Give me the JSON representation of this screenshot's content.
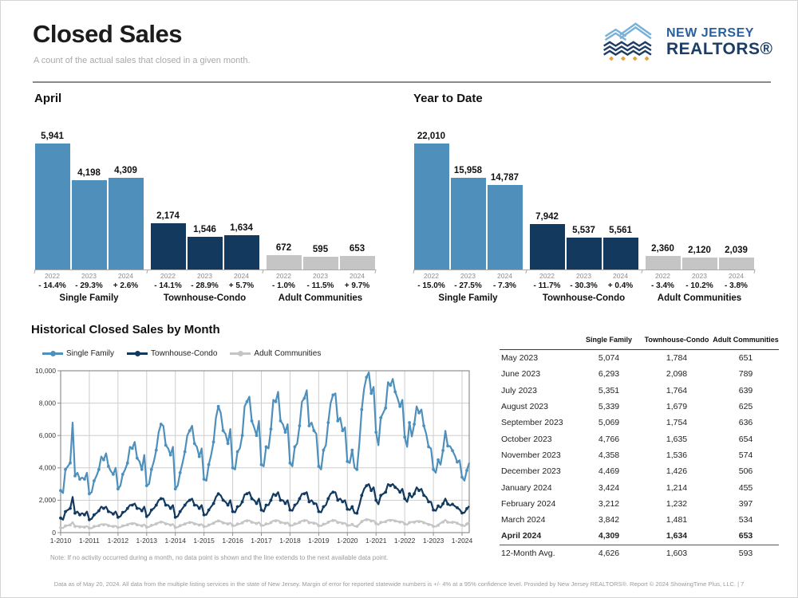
{
  "header": {
    "title": "Closed Sales",
    "subtitle": "A count of the actual sales that closed in a given month.",
    "logo": {
      "line1": "NEW JERSEY",
      "line2": "REALTORS®"
    }
  },
  "colors": {
    "single_family": "#4E90BB",
    "townhouse_condo": "#133A5E",
    "adult_communities": "#C5C5C5",
    "logo_light_blue": "#77B0D8",
    "logo_navy": "#1C3D66",
    "logo_gold": "#E4A23C"
  },
  "chart_data": [
    {
      "type": "bar",
      "name": "april",
      "title": "April",
      "ylim": [
        0,
        5941
      ],
      "groups": [
        {
          "label": "Single Family",
          "color_key": "single_family",
          "bars": [
            {
              "year": "2022",
              "value": 5941,
              "label": "5,941",
              "change": "- 14.4%"
            },
            {
              "year": "2023",
              "value": 4198,
              "label": "4,198",
              "change": "- 29.3%"
            },
            {
              "year": "2024",
              "value": 4309,
              "label": "4,309",
              "change": "+ 2.6%"
            }
          ]
        },
        {
          "label": "Townhouse-Condo",
          "color_key": "townhouse_condo",
          "bars": [
            {
              "year": "2022",
              "value": 2174,
              "label": "2,174",
              "change": "- 14.1%"
            },
            {
              "year": "2023",
              "value": 1546,
              "label": "1,546",
              "change": "- 28.9%"
            },
            {
              "year": "2024",
              "value": 1634,
              "label": "1,634",
              "change": "+ 5.7%"
            }
          ]
        },
        {
          "label": "Adult Communities",
          "color_key": "adult_communities",
          "bars": [
            {
              "year": "2022",
              "value": 672,
              "label": "672",
              "change": "- 1.0%"
            },
            {
              "year": "2023",
              "value": 595,
              "label": "595",
              "change": "- 11.5%"
            },
            {
              "year": "2024",
              "value": 653,
              "label": "653",
              "change": "+ 9.7%"
            }
          ]
        }
      ]
    },
    {
      "type": "bar",
      "name": "year-to-date",
      "title": "Year to Date",
      "ylim": [
        0,
        22010
      ],
      "groups": [
        {
          "label": "Single Family",
          "color_key": "single_family",
          "bars": [
            {
              "year": "2022",
              "value": 22010,
              "label": "22,010",
              "change": "- 15.0%"
            },
            {
              "year": "2023",
              "value": 15958,
              "label": "15,958",
              "change": "- 27.5%"
            },
            {
              "year": "2024",
              "value": 14787,
              "label": "14,787",
              "change": "- 7.3%"
            }
          ]
        },
        {
          "label": "Townhouse-Condo",
          "color_key": "townhouse_condo",
          "bars": [
            {
              "year": "2022",
              "value": 7942,
              "label": "7,942",
              "change": "- 11.7%"
            },
            {
              "year": "2023",
              "value": 5537,
              "label": "5,537",
              "change": "- 30.3%"
            },
            {
              "year": "2024",
              "value": 5561,
              "label": "5,561",
              "change": "+ 0.4%"
            }
          ]
        },
        {
          "label": "Adult Communities",
          "color_key": "adult_communities",
          "bars": [
            {
              "year": "2022",
              "value": 2360,
              "label": "2,360",
              "change": "- 3.4%"
            },
            {
              "year": "2023",
              "value": 2120,
              "label": "2,120",
              "change": "- 10.2%"
            },
            {
              "year": "2024",
              "value": 2039,
              "label": "2,039",
              "change": "- 3.8%"
            }
          ]
        }
      ]
    },
    {
      "type": "line",
      "name": "historical",
      "title": "Historical Closed Sales by Month",
      "note": "Note: If no activity occurred during a month, no data point is shown and the line extends to the next available data point.",
      "ylim": [
        0,
        10000
      ],
      "y_tick_labels": [
        "0",
        "2,000",
        "4,000",
        "6,000",
        "8,000",
        "10,000"
      ],
      "x_start": "2010-01",
      "x_end": "2024-04",
      "x_tick_every": 12,
      "x_tick_labels": [
        "1-2010",
        "1-2011",
        "1-2012",
        "1-2013",
        "1-2014",
        "1-2015",
        "1-2016",
        "1-2017",
        "1-2018",
        "1-2019",
        "1-2020",
        "1-2021",
        "1-2022",
        "1-2023",
        "1-2024"
      ],
      "grid": true,
      "legend_position": "top",
      "series": [
        {
          "name": "Single Family",
          "color_key": "single_family",
          "values": [
            2600,
            2450,
            3900,
            4100,
            4300,
            6800,
            3500,
            3700,
            3300,
            3400,
            3300,
            3700,
            2400,
            2500,
            3200,
            3500,
            3900,
            4700,
            4500,
            4900,
            4100,
            3800,
            3600,
            4000,
            2700,
            2900,
            3600,
            3900,
            4300,
            5300,
            5200,
            5600,
            4600,
            4400,
            3900,
            4800,
            2900,
            3000,
            3900,
            4400,
            5100,
            6200,
            6700,
            6600,
            5400,
            5200,
            4800,
            5300,
            2700,
            2900,
            3700,
            4300,
            5000,
            6000,
            6300,
            6600,
            5500,
            5300,
            4700,
            5200,
            3300,
            3200,
            4200,
            4800,
            5600,
            7100,
            7800,
            7400,
            6300,
            6100,
            5500,
            6400,
            4000,
            3900,
            5000,
            5200,
            6000,
            7800,
            8100,
            8400,
            6900,
            6500,
            6000,
            6900,
            4200,
            4100,
            5300,
            5200,
            6400,
            8200,
            8100,
            8700,
            6900,
            6700,
            6200,
            6700,
            4300,
            4100,
            5300,
            5500,
            6600,
            8100,
            8300,
            8800,
            6600,
            6800,
            6300,
            6100,
            4100,
            3900,
            5100,
            5400,
            6800,
            8000,
            8500,
            8600,
            6900,
            7100,
            6300,
            6500,
            4400,
            4300,
            5100,
            4000,
            3900,
            5500,
            7600,
            8900,
            9600,
            9900,
            8600,
            9000,
            6200,
            5400,
            7100,
            7400,
            7700,
            9300,
            9100,
            9500,
            8700,
            8300,
            7800,
            8200,
            5900,
            5300,
            6800,
            5941,
            6700,
            7800,
            7400,
            7600,
            6600,
            6100,
            5300,
            5200,
            3900,
            3700,
            4500,
            4198,
            5074,
            6293,
            5351,
            5339,
            5069,
            4766,
            4358,
            4469,
            3424,
            3212,
            3842,
            4309
          ]
        },
        {
          "name": "Townhouse-Condo",
          "color_key": "townhouse_condo",
          "values": [
            900,
            800,
            1300,
            1400,
            1500,
            2200,
            1200,
            1300,
            1100,
            1200,
            1100,
            1300,
            800,
            850,
            1100,
            1200,
            1350,
            1600,
            1500,
            1600,
            1300,
            1250,
            1150,
            1300,
            950,
            1000,
            1250,
            1300,
            1500,
            1700,
            1700,
            1800,
            1500,
            1500,
            1350,
            1600,
            1000,
            1100,
            1400,
            1500,
            1700,
            2000,
            2100,
            2100,
            1700,
            1700,
            1500,
            1700,
            950,
            1000,
            1300,
            1500,
            1700,
            1900,
            2000,
            2100,
            1700,
            1700,
            1500,
            1700,
            1100,
            1100,
            1400,
            1600,
            1800,
            2200,
            2400,
            2300,
            2000,
            1900,
            1700,
            2000,
            1300,
            1250,
            1600,
            1650,
            1900,
            2350,
            2400,
            2500,
            2100,
            2000,
            1800,
            2100,
            1400,
            1300,
            1700,
            1700,
            2000,
            2400,
            2300,
            2500,
            2000,
            2000,
            1800,
            2000,
            1400,
            1350,
            1700,
            1800,
            2100,
            2400,
            2400,
            2500,
            1900,
            2000,
            1800,
            1800,
            1300,
            1250,
            1600,
            1700,
            2100,
            2400,
            2500,
            2500,
            2000,
            2100,
            1900,
            2000,
            1450,
            1400,
            1600,
            1200,
            1200,
            1700,
            2300,
            2700,
            2900,
            3000,
            2600,
            2800,
            2000,
            1750,
            2300,
            2400,
            2500,
            3000,
            2900,
            3000,
            2800,
            2700,
            2500,
            2700,
            2100,
            1900,
            2400,
            2174,
            2400,
            2800,
            2600,
            2700,
            2300,
            2200,
            1900,
            1900,
            1400,
            1350,
            1650,
            1546,
            1784,
            2098,
            1764,
            1679,
            1754,
            1635,
            1536,
            1426,
            1214,
            1232,
            1481,
            1634
          ]
        },
        {
          "name": "Adult Communities",
          "color_key": "adult_communities",
          "values": [
            300,
            280,
            420,
            450,
            470,
            650,
            380,
            400,
            350,
            370,
            340,
            400,
            280,
            270,
            380,
            400,
            430,
            520,
            490,
            520,
            430,
            410,
            380,
            420,
            320,
            330,
            420,
            440,
            490,
            560,
            550,
            580,
            480,
            470,
            420,
            500,
            340,
            350,
            450,
            480,
            540,
            620,
            650,
            640,
            540,
            530,
            470,
            530,
            320,
            330,
            430,
            480,
            530,
            600,
            620,
            640,
            540,
            520,
            470,
            520,
            380,
            370,
            470,
            520,
            580,
            680,
            720,
            700,
            600,
            580,
            530,
            600,
            440,
            420,
            530,
            540,
            600,
            720,
            730,
            750,
            640,
            610,
            560,
            640,
            450,
            430,
            540,
            530,
            620,
            740,
            730,
            760,
            630,
            620,
            570,
            620,
            450,
            430,
            540,
            550,
            630,
            730,
            740,
            770,
            610,
            630,
            580,
            570,
            430,
            410,
            520,
            540,
            640,
            720,
            750,
            760,
            620,
            640,
            570,
            590,
            450,
            440,
            510,
            400,
            390,
            520,
            680,
            770,
            800,
            810,
            720,
            750,
            560,
            490,
            630,
            650,
            670,
            780,
            760,
            780,
            720,
            690,
            650,
            680,
            540,
            490,
            620,
            672,
            640,
            720,
            680,
            700,
            610,
            570,
            500,
            490,
            390,
            370,
            460,
            595,
            651,
            789,
            639,
            625,
            636,
            654,
            574,
            506,
            455,
            397,
            534,
            653
          ]
        }
      ]
    }
  ],
  "table": {
    "headers": [
      "Single Family",
      "Townhouse-Condo",
      "Adult Communities"
    ],
    "rows": [
      {
        "label": "May 2023",
        "values": [
          "5,074",
          "1,784",
          "651"
        ]
      },
      {
        "label": "June 2023",
        "values": [
          "6,293",
          "2,098",
          "789"
        ]
      },
      {
        "label": "July 2023",
        "values": [
          "5,351",
          "1,764",
          "639"
        ]
      },
      {
        "label": "August 2023",
        "values": [
          "5,339",
          "1,679",
          "625"
        ]
      },
      {
        "label": "September 2023",
        "values": [
          "5,069",
          "1,754",
          "636"
        ]
      },
      {
        "label": "October 2023",
        "values": [
          "4,766",
          "1,635",
          "654"
        ]
      },
      {
        "label": "November 2023",
        "values": [
          "4,358",
          "1,536",
          "574"
        ]
      },
      {
        "label": "December 2023",
        "values": [
          "4,469",
          "1,426",
          "506"
        ]
      },
      {
        "label": "January 2024",
        "values": [
          "3,424",
          "1,214",
          "455"
        ]
      },
      {
        "label": "February 2024",
        "values": [
          "3,212",
          "1,232",
          "397"
        ]
      },
      {
        "label": "March 2024",
        "values": [
          "3,842",
          "1,481",
          "534"
        ]
      },
      {
        "label": "April 2024",
        "values": [
          "4,309",
          "1,634",
          "653"
        ],
        "bold": true
      },
      {
        "label": "12-Month Avg.",
        "values": [
          "4,626",
          "1,603",
          "593"
        ],
        "separator_above": true
      }
    ]
  },
  "footer": {
    "text": "Data as of May 20, 2024. All data from the multiple listing services in the state of New Jersey. Margin of error for reported statewide numbers is +/- 4% at a 95% confidence level. Provided by New Jersey REALTORS®. Report © 2024 ShowingTime Plus, LLC. | 7"
  }
}
